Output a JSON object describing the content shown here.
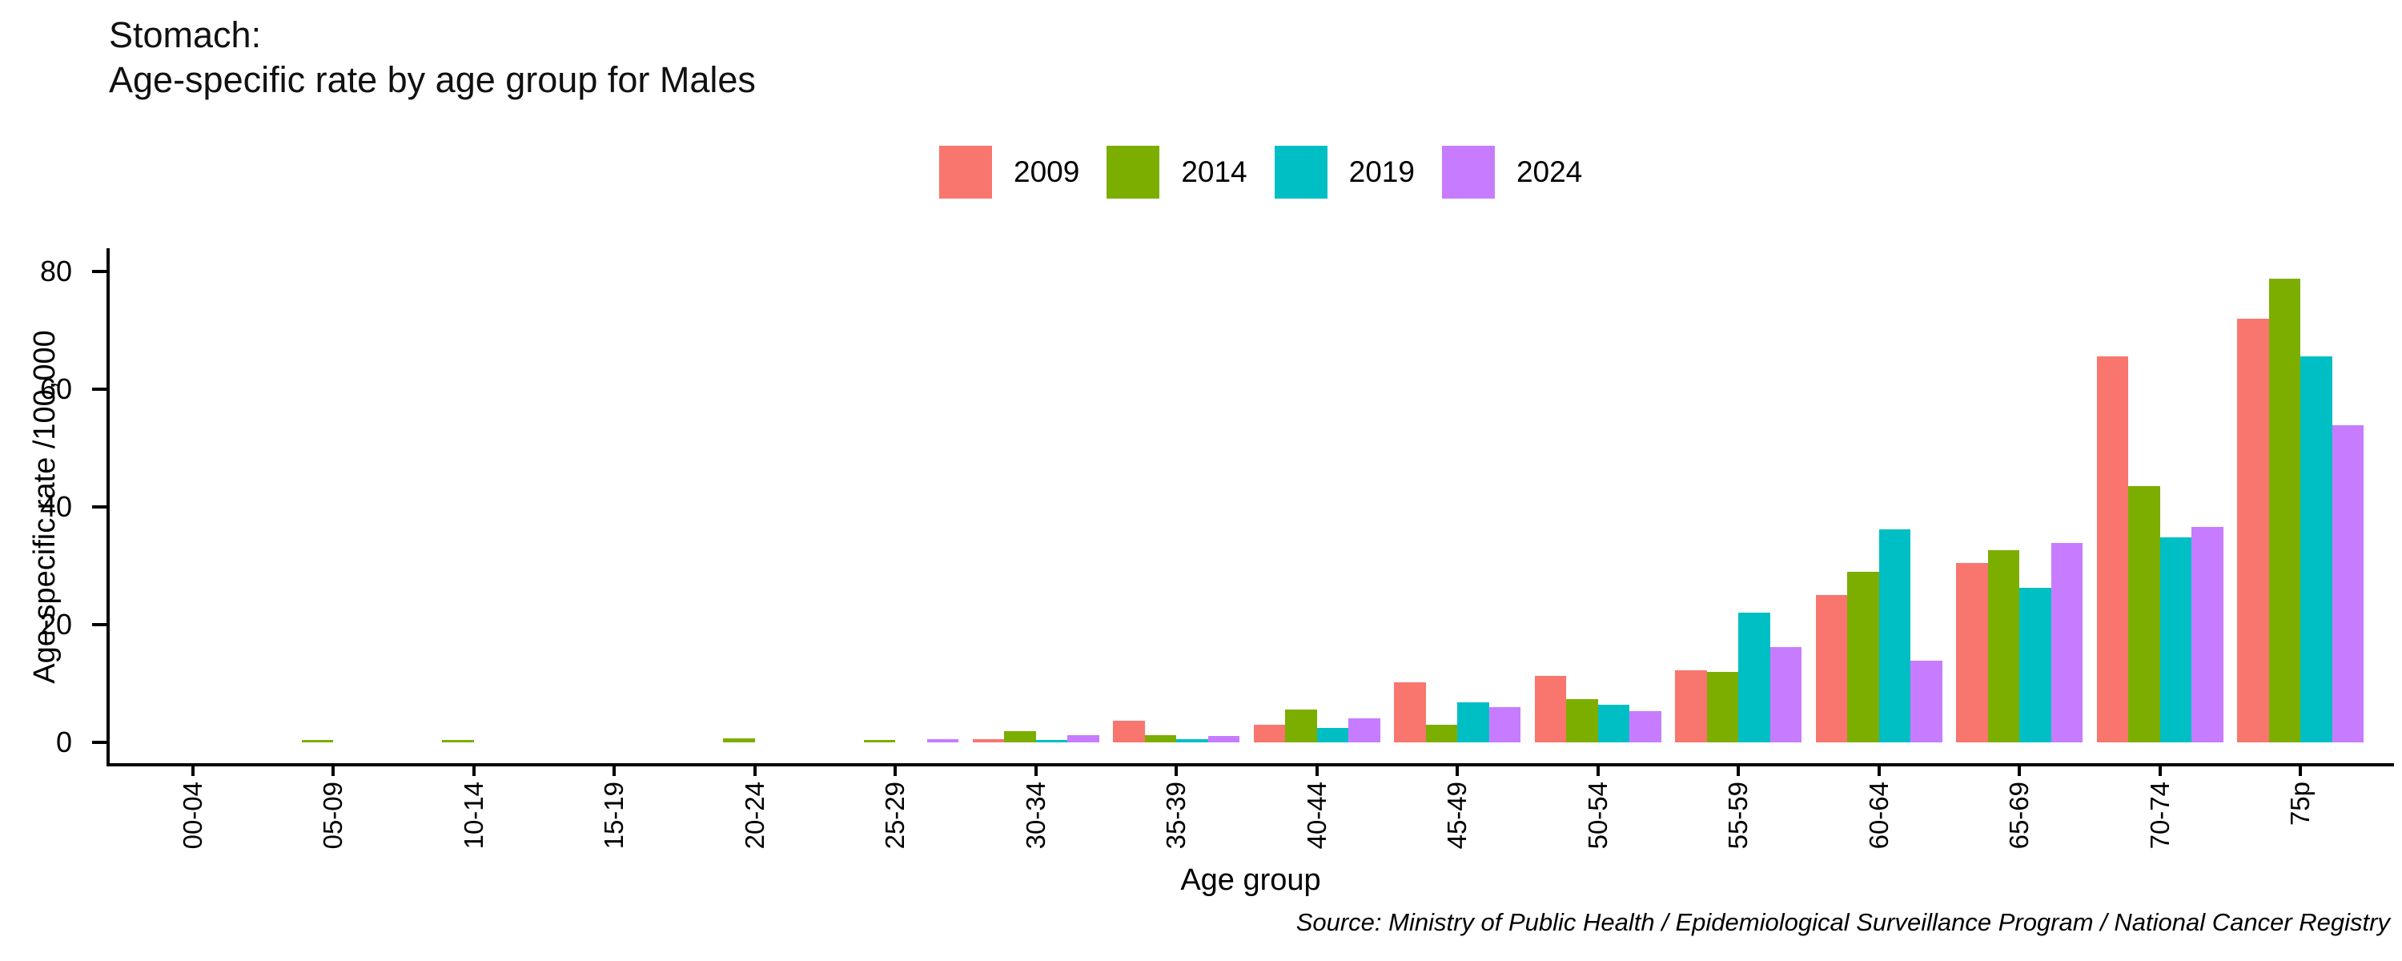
{
  "title": {
    "line1": "Stomach:",
    "line2": "Age-specific rate by age group for Males"
  },
  "legend": {
    "items": [
      {
        "label": "2009",
        "color": "#F8766D"
      },
      {
        "label": "2014",
        "color": "#7CAE00"
      },
      {
        "label": "2019",
        "color": "#00BFC4"
      },
      {
        "label": "2024",
        "color": "#C77CFF"
      }
    ]
  },
  "axes": {
    "y_label": "Age-specific rate /100,000",
    "x_label": "Age group",
    "y_ticks": [
      0,
      20,
      40,
      60,
      80
    ]
  },
  "source": "Source: Ministry of Public Health / Epidemiological Surveillance Program / National Cancer Registry",
  "chart_data": {
    "type": "bar",
    "title": "Stomach: Age-specific rate by age group for Males",
    "xlabel": "Age group",
    "ylabel": "Age-specific rate /100,000",
    "ylim": [
      0,
      80
    ],
    "grid": false,
    "legend_position": "top",
    "categories": [
      "00-04",
      "05-09",
      "10-14",
      "15-19",
      "20-24",
      "25-29",
      "30-34",
      "35-39",
      "40-44",
      "45-49",
      "50-54",
      "55-59",
      "60-64",
      "65-69",
      "70-74",
      "75p"
    ],
    "series": [
      {
        "name": "2009",
        "color": "#F8766D",
        "values": [
          0,
          0,
          0,
          0,
          0,
          0,
          0.6,
          3.7,
          3.0,
          10.2,
          11.3,
          12.3,
          25.1,
          30.5,
          65.6,
          72.0
        ]
      },
      {
        "name": "2014",
        "color": "#7CAE00",
        "values": [
          0,
          0.4,
          0.4,
          0,
          0.7,
          0.5,
          2.0,
          1.3,
          5.7,
          3.0,
          7.4,
          12.0,
          29.1,
          32.7,
          43.6,
          78.8
        ]
      },
      {
        "name": "2019",
        "color": "#00BFC4",
        "values": [
          0,
          0,
          0,
          0,
          0,
          0,
          0.4,
          0.6,
          2.5,
          6.8,
          6.4,
          22.1,
          36.2,
          26.3,
          34.9,
          65.6
        ]
      },
      {
        "name": "2024",
        "color": "#C77CFF",
        "values": [
          0,
          0,
          0,
          0,
          0,
          0.6,
          1.3,
          1.2,
          4.2,
          6.1,
          5.4,
          16.2,
          13.9,
          34.0,
          36.6,
          53.9
        ]
      }
    ]
  }
}
